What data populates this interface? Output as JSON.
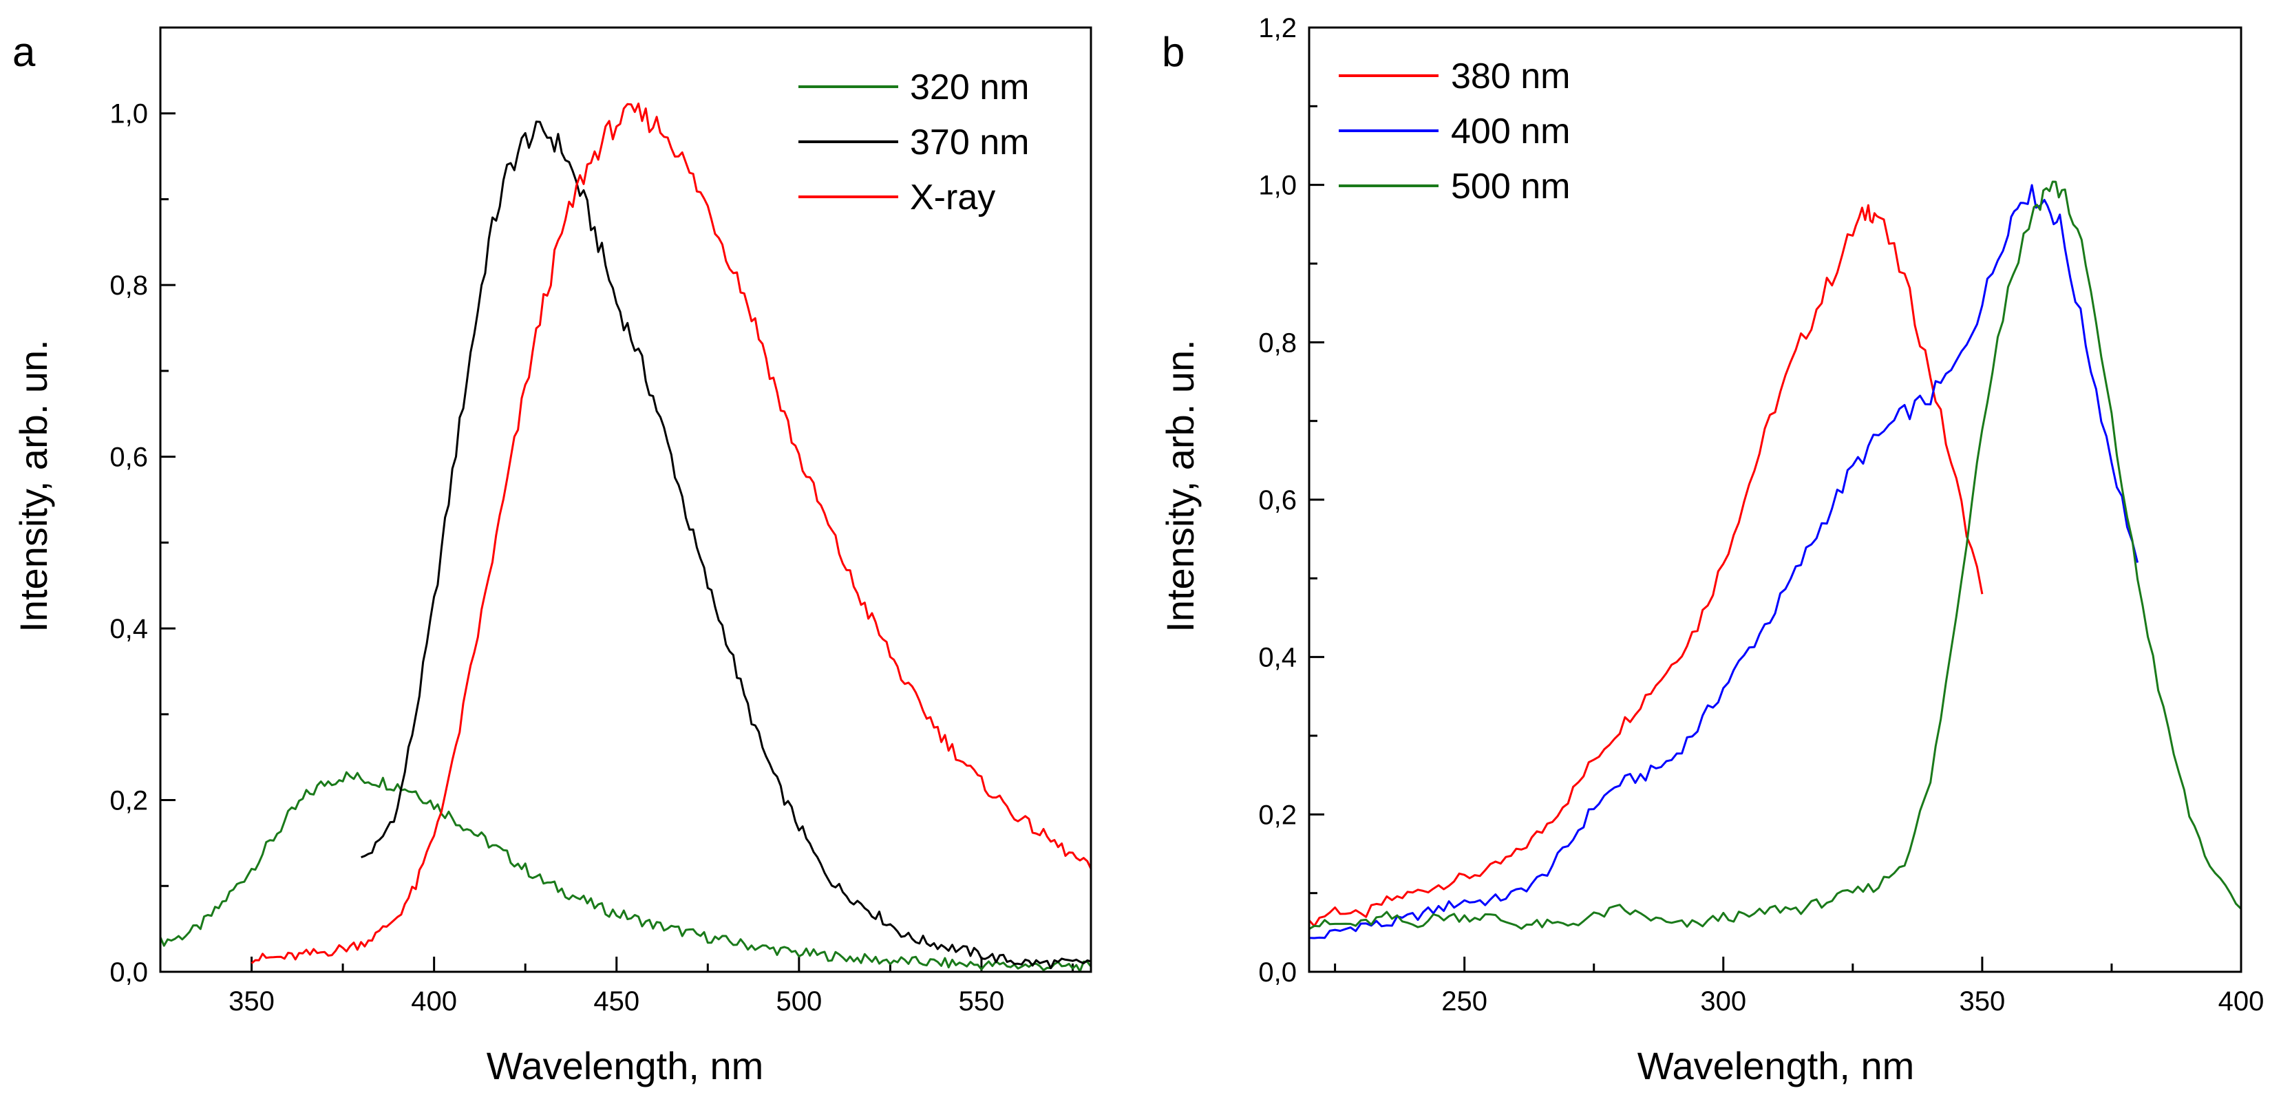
{
  "chart_data": [
    {
      "panel": "a",
      "type": "line",
      "xlabel": "Wavelength, nm",
      "ylabel": "Intensity, arb. un.",
      "xlim": [
        325,
        580
      ],
      "ylim": [
        0,
        1.1
      ],
      "xticks": [
        350,
        400,
        450,
        500,
        550
      ],
      "xtick_labels": [
        "350",
        "400",
        "450",
        "500",
        "550"
      ],
      "yticks": [
        0,
        0.2,
        0.4,
        0.6,
        0.8,
        1.0
      ],
      "ytick_labels": [
        "0,0",
        "0,2",
        "0,4",
        "0,6",
        "0,8",
        "1,0"
      ],
      "legend_position": "top-right",
      "series": [
        {
          "name": "320 nm",
          "color": "#1a7a1a",
          "x": [
            325,
            330,
            335,
            340,
            345,
            350,
            355,
            360,
            365,
            370,
            375,
            380,
            385,
            390,
            395,
            400,
            405,
            410,
            415,
            420,
            425,
            430,
            435,
            440,
            445,
            450,
            455,
            460,
            465,
            470,
            475,
            480,
            485,
            490,
            495,
            500,
            505,
            510,
            515,
            520,
            525,
            530,
            535,
            540,
            545,
            550,
            555,
            560,
            565,
            570,
            575,
            580
          ],
          "y": [
            0.035,
            0.04,
            0.05,
            0.07,
            0.095,
            0.12,
            0.15,
            0.18,
            0.205,
            0.22,
            0.228,
            0.225,
            0.222,
            0.217,
            0.21,
            0.195,
            0.18,
            0.165,
            0.15,
            0.135,
            0.12,
            0.105,
            0.095,
            0.085,
            0.075,
            0.068,
            0.062,
            0.055,
            0.05,
            0.045,
            0.04,
            0.036,
            0.032,
            0.028,
            0.025,
            0.022,
            0.02,
            0.018,
            0.016,
            0.014,
            0.013,
            0.012,
            0.011,
            0.01,
            0.009,
            0.008,
            0.008,
            0.007,
            0.007,
            0.006,
            0.006,
            0.006
          ]
        },
        {
          "name": "370 nm",
          "color": "#000000",
          "x": [
            380,
            385,
            390,
            395,
            400,
            405,
            410,
            415,
            420,
            425,
            430,
            435,
            440,
            445,
            450,
            455,
            460,
            465,
            470,
            475,
            480,
            485,
            490,
            495,
            500,
            505,
            510,
            515,
            520,
            525,
            530,
            535,
            540,
            545,
            550,
            555,
            560,
            565,
            570,
            575,
            580
          ],
          "y": [
            0.13,
            0.15,
            0.19,
            0.3,
            0.43,
            0.58,
            0.72,
            0.85,
            0.93,
            0.97,
            0.98,
            0.96,
            0.91,
            0.85,
            0.78,
            0.73,
            0.67,
            0.6,
            0.52,
            0.45,
            0.39,
            0.32,
            0.26,
            0.21,
            0.17,
            0.13,
            0.1,
            0.085,
            0.07,
            0.055,
            0.04,
            0.035,
            0.03,
            0.025,
            0.02,
            0.015,
            0.012,
            0.01,
            0.01,
            0.01,
            0.012
          ]
        },
        {
          "name": "X-ray",
          "color": "#ff0000",
          "x": [
            350,
            355,
            360,
            365,
            370,
            375,
            380,
            385,
            390,
            395,
            400,
            405,
            410,
            415,
            420,
            425,
            430,
            435,
            440,
            445,
            450,
            455,
            460,
            465,
            470,
            475,
            480,
            485,
            490,
            495,
            500,
            505,
            510,
            515,
            520,
            525,
            530,
            535,
            540,
            545,
            550,
            555,
            560,
            565,
            570,
            575,
            580
          ],
          "y": [
            0.015,
            0.016,
            0.017,
            0.02,
            0.023,
            0.027,
            0.033,
            0.045,
            0.065,
            0.1,
            0.16,
            0.24,
            0.35,
            0.46,
            0.57,
            0.68,
            0.78,
            0.86,
            0.92,
            0.96,
            0.99,
            1.0,
            0.99,
            0.97,
            0.93,
            0.89,
            0.84,
            0.79,
            0.73,
            0.66,
            0.6,
            0.55,
            0.5,
            0.45,
            0.41,
            0.37,
            0.33,
            0.3,
            0.27,
            0.245,
            0.22,
            0.2,
            0.18,
            0.165,
            0.15,
            0.135,
            0.12
          ]
        }
      ]
    },
    {
      "panel": "b",
      "type": "line",
      "xlabel": "Wavelength, nm",
      "ylabel": "Intensity, arb. un.",
      "xlim": [
        220,
        400
      ],
      "ylim": [
        0,
        1.2
      ],
      "xticks": [
        250,
        300,
        350,
        400
      ],
      "xtick_labels": [
        "250",
        "300",
        "350",
        "400"
      ],
      "yticks": [
        0,
        0.2,
        0.4,
        0.6,
        0.8,
        1.0,
        1.2
      ],
      "ytick_labels": [
        "0,0",
        "0,2",
        "0,4",
        "0,6",
        "0,8",
        "1,0",
        "1,2"
      ],
      "legend_position": "top-left",
      "series": [
        {
          "name": "380 nm",
          "color": "#ff0000",
          "x": [
            220,
            225,
            230,
            235,
            240,
            245,
            250,
            255,
            260,
            265,
            270,
            275,
            280,
            285,
            290,
            295,
            300,
            305,
            310,
            315,
            320,
            325,
            328,
            330,
            335,
            340,
            345,
            350
          ],
          "y": [
            0.06,
            0.08,
            0.07,
            0.09,
            0.1,
            0.11,
            0.12,
            0.13,
            0.15,
            0.18,
            0.22,
            0.27,
            0.31,
            0.35,
            0.39,
            0.44,
            0.52,
            0.62,
            0.72,
            0.8,
            0.87,
            0.94,
            0.97,
            0.96,
            0.88,
            0.76,
            0.62,
            0.48
          ]
        },
        {
          "name": "400 nm",
          "color": "#0000ff",
          "x": [
            220,
            225,
            230,
            235,
            240,
            245,
            250,
            255,
            260,
            265,
            270,
            275,
            280,
            285,
            290,
            295,
            300,
            305,
            310,
            315,
            320,
            325,
            330,
            335,
            340,
            345,
            350,
            355,
            358,
            362,
            365,
            370,
            375,
            380
          ],
          "y": [
            0.04,
            0.05,
            0.06,
            0.06,
            0.07,
            0.08,
            0.09,
            0.09,
            0.1,
            0.12,
            0.16,
            0.21,
            0.24,
            0.25,
            0.27,
            0.31,
            0.36,
            0.41,
            0.46,
            0.52,
            0.58,
            0.64,
            0.68,
            0.71,
            0.73,
            0.77,
            0.85,
            0.95,
            0.99,
            0.98,
            0.95,
            0.8,
            0.65,
            0.52
          ]
        },
        {
          "name": "500 nm",
          "color": "#1a7a1a",
          "x": [
            220,
            225,
            230,
            235,
            240,
            245,
            250,
            255,
            260,
            265,
            270,
            275,
            280,
            285,
            290,
            295,
            300,
            305,
            310,
            315,
            320,
            325,
            330,
            335,
            340,
            345,
            350,
            355,
            360,
            363,
            366,
            370,
            375,
            380,
            385,
            390,
            395,
            400
          ],
          "y": [
            0.06,
            0.06,
            0.06,
            0.07,
            0.06,
            0.07,
            0.07,
            0.07,
            0.06,
            0.06,
            0.06,
            0.07,
            0.08,
            0.07,
            0.06,
            0.06,
            0.07,
            0.07,
            0.08,
            0.08,
            0.09,
            0.1,
            0.11,
            0.14,
            0.24,
            0.45,
            0.7,
            0.87,
            0.97,
            1.0,
            0.99,
            0.9,
            0.7,
            0.5,
            0.33,
            0.2,
            0.12,
            0.08
          ]
        }
      ]
    }
  ],
  "panels": [
    {
      "letter": "a",
      "xlabel": "Wavelength, nm",
      "ylabel": "Intensity, arb. un.",
      "xtick_labels": [
        "350",
        "400",
        "450",
        "500",
        "550"
      ],
      "ytick_labels": [
        "0,0",
        "0,2",
        "0,4",
        "0,6",
        "0,8",
        "1,0"
      ],
      "legend": [
        "320 nm",
        "370 nm",
        "X-ray"
      ]
    },
    {
      "letter": "b",
      "xlabel": "Wavelength, nm",
      "ylabel": "Intensity, arb. un.",
      "xtick_labels": [
        "250",
        "300",
        "350",
        "400"
      ],
      "ytick_labels": [
        "0,0",
        "0,2",
        "0,4",
        "0,6",
        "0,8",
        "1,0",
        "1,2"
      ],
      "legend": [
        "380 nm",
        "400 nm",
        "500 nm"
      ]
    }
  ]
}
